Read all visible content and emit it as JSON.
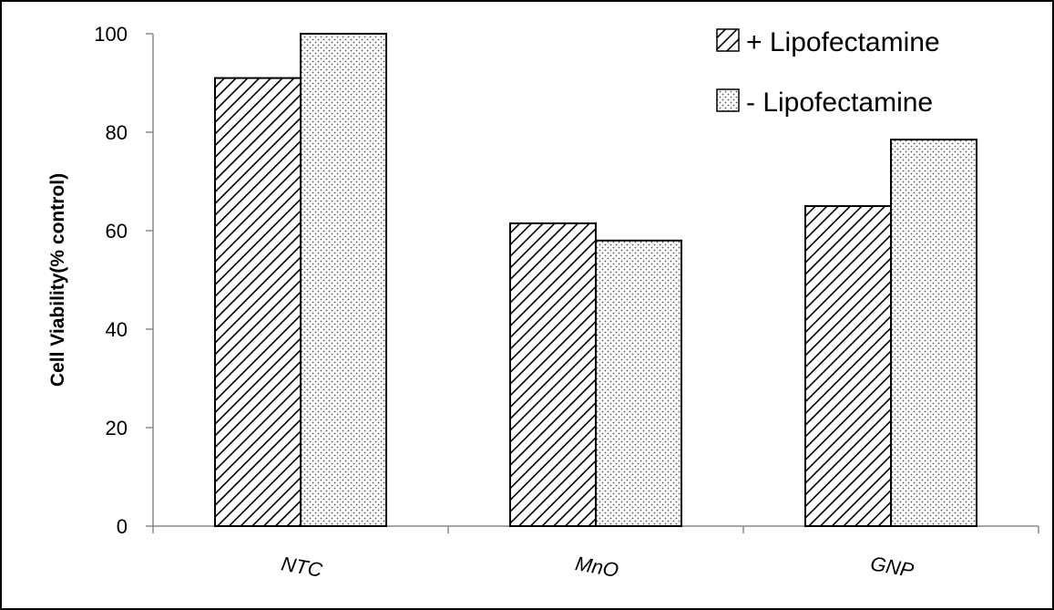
{
  "chart_data": {
    "type": "bar",
    "categories": [
      "NTC",
      "MnO",
      "GNP"
    ],
    "series": [
      {
        "name": "+ Lipofectamine",
        "values": [
          91,
          61.5,
          65
        ],
        "pattern": "diagonal-hatch"
      },
      {
        "name": "- Lipofectamine",
        "values": [
          100,
          58,
          78.5
        ],
        "pattern": "dots"
      }
    ],
    "title": "",
    "xlabel": "",
    "ylabel": "Cell Viability(% control)",
    "ylim": [
      0,
      100
    ],
    "yticks": [
      0,
      20,
      40,
      60,
      80,
      100
    ],
    "grid": false,
    "legend_position": "top-right",
    "colors": {
      "bar_fill": "#ffffff",
      "hatch": "#000000",
      "border": "#000000",
      "frame": "#000000"
    }
  }
}
